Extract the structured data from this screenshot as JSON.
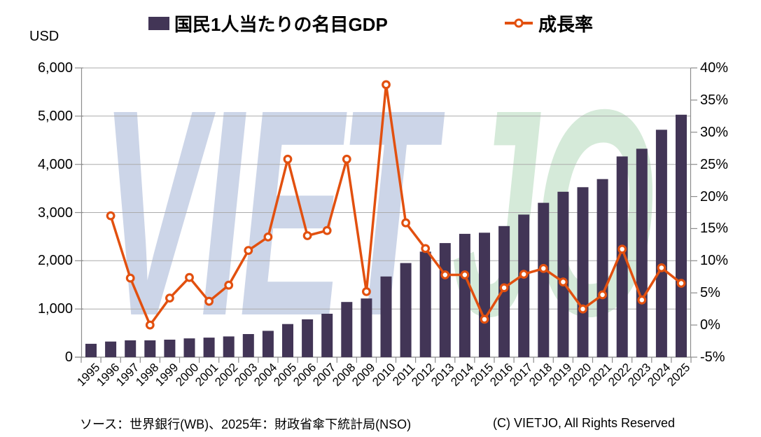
{
  "legend": {
    "gdp_label": "国民1人当たりの名目GDP",
    "growth_label": "成長率"
  },
  "watermark": {
    "part1": "VIET",
    "part2": "JO",
    "part1_color": "#ccd5e8",
    "part2_color": "#d5ead9"
  },
  "footer": {
    "source": "ソース：世界銀行(WB)、2025年：財政省傘下統計局(NSO)",
    "copyright": "(C) VIETJO, All Rights Reserved"
  },
  "chart_data": {
    "type": "bar+line",
    "title": "",
    "categories": [
      "1995",
      "1996",
      "1997",
      "1998",
      "1999",
      "2000",
      "2001",
      "2002",
      "2003",
      "2004",
      "2005",
      "2006",
      "2007",
      "2008",
      "2009",
      "2010",
      "2011",
      "2012",
      "2013",
      "2014",
      "2015",
      "2016",
      "2017",
      "2018",
      "2019",
      "2020",
      "2021",
      "2022",
      "2023",
      "2024",
      "2025"
    ],
    "series": [
      {
        "name": "国民1人当たりの名目GDP",
        "type": "bar",
        "yaxis": "left",
        "color": "#423556",
        "values": [
          277,
          324,
          348,
          348,
          363,
          390,
          405,
          430,
          480,
          546,
          687,
          784,
          901,
          1145,
          1217,
          1673,
          1953,
          2190,
          2367,
          2558,
          2582,
          2720,
          2958,
          3202,
          3432,
          3526,
          3694,
          4164,
          4324,
          4717,
          5029
        ]
      },
      {
        "name": "成長率",
        "type": "line",
        "yaxis": "right",
        "color": "#e2500f",
        "marker": "circle-open",
        "values": [
          null,
          17,
          7.3,
          0,
          4.2,
          7.4,
          3.7,
          6.2,
          11.6,
          13.7,
          25.8,
          13.9,
          14.7,
          25.8,
          5.2,
          37.4,
          15.9,
          11.9,
          7.8,
          7.8,
          0.9,
          5.8,
          7.9,
          8.8,
          6.7,
          2.5,
          4.7,
          11.8,
          3.9,
          8.9,
          6.5
        ]
      }
    ],
    "left_axis": {
      "unit": "USD",
      "min": 0,
      "max": 6000,
      "tick_labels": [
        "0",
        "1,000",
        "2,000",
        "3,000",
        "4,000",
        "5,000",
        "6,000"
      ]
    },
    "right_axis": {
      "min": -5,
      "max": 40,
      "tick_labels": [
        "-5%",
        "0%",
        "5%",
        "10%",
        "15%",
        "20%",
        "25%",
        "30%",
        "35%",
        "40%"
      ]
    },
    "grid": true,
    "legend_position": "top"
  }
}
